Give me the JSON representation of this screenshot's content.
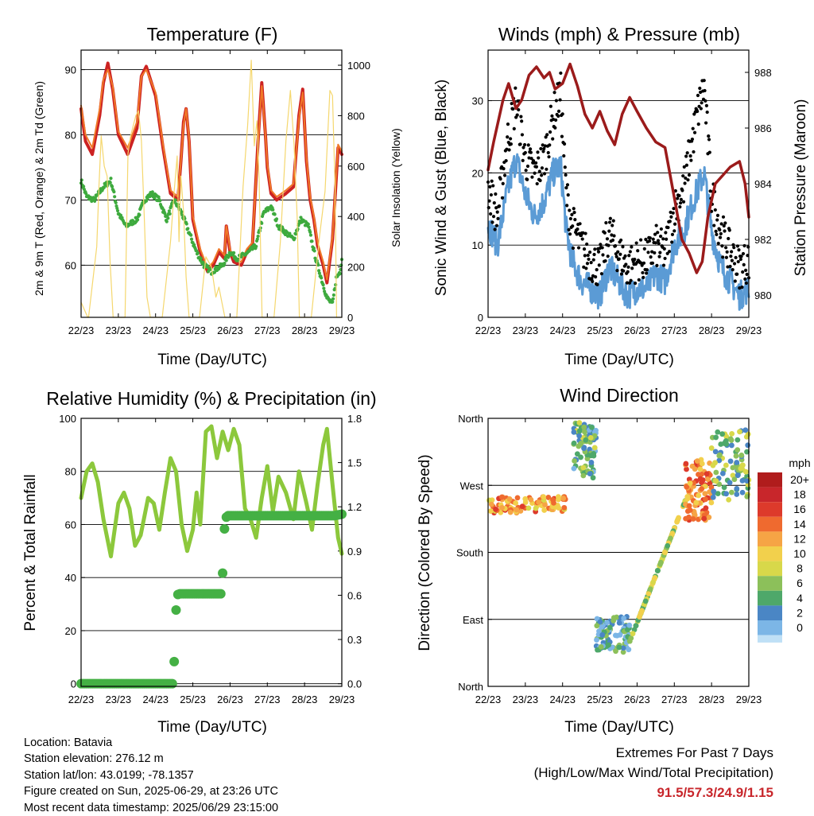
{
  "colors": {
    "temp_2m": "#cc2222",
    "temp_9m": "#f07828",
    "dewpoint": "#3eaa3e",
    "solar": "#f5d76e",
    "wind": "#5b9bd5",
    "gust": "#000000",
    "pressure": "#9b1b1b",
    "rh": "#8cc83c",
    "precip": "#44b044"
  },
  "chart_data": [
    {
      "id": "temperature",
      "type": "line",
      "title": "Temperature (F)",
      "xlabel": "Time (Day/UTC)",
      "ylabel": "2m & 9m T (Red, Orange) & 2m Td (Green)",
      "y2label": "Solar Insolation (Yellow)",
      "x_ticks": [
        "22/23",
        "23/23",
        "24/23",
        "25/23",
        "26/23",
        "27/23",
        "28/23",
        "29/23"
      ],
      "x_range": [
        0,
        7
      ],
      "ylim": [
        52,
        93
      ],
      "y_ticks": [
        60,
        70,
        80,
        90
      ],
      "y2lim": [
        0,
        1060
      ],
      "y2_ticks": [
        0,
        200,
        400,
        600,
        800,
        1000
      ],
      "grid": true,
      "series": [
        {
          "key": "temp_2m",
          "axis": "left",
          "width": 4,
          "x": [
            0,
            0.12,
            0.3,
            0.5,
            0.6,
            0.72,
            0.85,
            1.0,
            1.25,
            1.5,
            1.62,
            1.75,
            2.0,
            2.2,
            2.4,
            2.6,
            2.68,
            2.75,
            2.82,
            2.9,
            3.0,
            3.2,
            3.4,
            3.55,
            3.7,
            3.85,
            3.9,
            4.0,
            4.1,
            4.3,
            4.45,
            4.6,
            4.75,
            4.85,
            4.95,
            5.0,
            5.1,
            5.25,
            5.5,
            5.7,
            5.85,
            5.95,
            6.05,
            6.15,
            6.25,
            6.35,
            6.5,
            6.6,
            6.75,
            6.9,
            7.0
          ],
          "y": [
            84,
            79,
            77,
            83,
            88,
            91,
            87,
            80,
            77,
            81,
            89,
            90.5,
            86,
            78,
            71,
            70,
            76,
            82,
            84,
            79,
            67,
            62,
            59,
            60,
            62,
            61,
            66,
            62,
            60.5,
            60,
            62,
            63,
            79,
            88,
            80,
            75,
            71,
            70,
            71,
            72,
            83,
            87,
            76,
            70,
            67,
            63,
            60,
            57.3,
            64,
            78,
            77
          ]
        },
        {
          "key": "temp_9m",
          "axis": "left",
          "width": 2,
          "x": [
            0,
            0.12,
            0.3,
            0.5,
            0.6,
            0.72,
            0.85,
            1.0,
            1.25,
            1.5,
            1.62,
            1.75,
            2.0,
            2.2,
            2.4,
            2.6,
            2.68,
            2.75,
            2.82,
            2.9,
            3.0,
            3.2,
            3.4,
            3.55,
            3.7,
            3.85,
            3.9,
            4.0,
            4.1,
            4.3,
            4.45,
            4.6,
            4.75,
            4.85,
            4.95,
            5.0,
            5.1,
            5.25,
            5.5,
            5.7,
            5.85,
            5.95,
            6.05,
            6.15,
            6.25,
            6.35,
            6.5,
            6.6,
            6.75,
            6.9,
            7.0
          ],
          "y": [
            84.5,
            80,
            78,
            84,
            88.5,
            90,
            87.5,
            80.5,
            78,
            82,
            89,
            90,
            86.5,
            78.5,
            71.5,
            70.5,
            76,
            81.5,
            84,
            79.5,
            67.5,
            62.5,
            59.5,
            60.5,
            62.5,
            61.5,
            66,
            62.5,
            61,
            60.5,
            62.5,
            63.5,
            78.5,
            87.5,
            80,
            75.5,
            71.5,
            70.5,
            71.5,
            72.5,
            82.5,
            86.5,
            76.5,
            70.5,
            67.5,
            63.5,
            60.5,
            57.8,
            64.5,
            78.5,
            77.5
          ]
        },
        {
          "key": "dewpoint",
          "axis": "left",
          "width": 3,
          "dotted": true,
          "x": [
            0,
            0.15,
            0.35,
            0.6,
            0.8,
            1.0,
            1.2,
            1.5,
            1.7,
            1.9,
            2.1,
            2.3,
            2.5,
            2.7,
            2.9,
            3.1,
            3.3,
            3.5,
            3.8,
            4.0,
            4.2,
            4.5,
            4.7,
            4.9,
            5.1,
            5.3,
            5.5,
            5.7,
            5.9,
            6.1,
            6.3,
            6.5,
            6.6,
            6.75,
            6.85,
            6.95,
            7.0
          ],
          "y": [
            73,
            70.5,
            70,
            72,
            73,
            68,
            66,
            67,
            70,
            71,
            70,
            67,
            70,
            68,
            65,
            62,
            60,
            59,
            60,
            62,
            61,
            62,
            63,
            68,
            69,
            66,
            65,
            64,
            67,
            66,
            61,
            57,
            55,
            54,
            58,
            59,
            61
          ]
        },
        {
          "key": "solar",
          "axis": "right",
          "width": 1.2,
          "x": [
            0,
            0.18,
            0.2,
            0.42,
            0.48,
            0.54,
            0.62,
            0.7,
            0.78,
            0.86,
            1.16,
            1.18,
            1.26,
            1.33,
            1.4,
            1.47,
            1.54,
            1.62,
            1.7,
            1.77,
            1.86,
            2.16,
            2.18,
            2.4,
            2.5,
            2.58,
            2.63,
            2.68,
            2.75,
            2.82,
            2.9,
            3.16,
            3.18,
            3.35,
            3.5,
            3.62,
            3.7,
            3.78,
            3.86,
            4.16,
            4.18,
            4.35,
            4.47,
            4.57,
            4.65,
            4.72,
            4.78,
            4.86,
            5.16,
            5.18,
            5.35,
            5.5,
            5.62,
            5.72,
            5.8,
            5.86,
            6.16,
            6.18,
            6.4,
            6.55,
            6.68,
            6.75,
            6.82,
            6.86,
            7.0
          ],
          "y": [
            60,
            0,
            0,
            280,
            520,
            720,
            600,
            560,
            220,
            0,
            0,
            0,
            650,
            720,
            760,
            800,
            820,
            700,
            380,
            80,
            0,
            0,
            0,
            300,
            500,
            640,
            300,
            560,
            420,
            160,
            0,
            0,
            0,
            240,
            200,
            80,
            120,
            60,
            0,
            0,
            0,
            520,
            760,
            1020,
            680,
            780,
            540,
            0,
            0,
            0,
            300,
            700,
            900,
            680,
            400,
            0,
            0,
            0,
            320,
            500,
            900,
            880,
            500,
            0,
            0
          ]
        }
      ]
    },
    {
      "id": "winds",
      "type": "scatter",
      "title": "Winds (mph) & Pressure (mb)",
      "xlabel": "Time (Day/UTC)",
      "ylabel": "Sonic Wind & Gust (Blue, Black)",
      "y2label": "Station Pressure (Maroon)",
      "x_ticks": [
        "22/23",
        "23/23",
        "24/23",
        "25/23",
        "26/23",
        "27/23",
        "28/23",
        "29/23"
      ],
      "x_range": [
        0,
        7
      ],
      "ylim": [
        0,
        37
      ],
      "y_ticks": [
        0,
        10,
        20,
        30
      ],
      "y2lim": [
        979.2,
        988.8
      ],
      "y2_ticks": [
        980,
        982,
        984,
        986,
        988
      ],
      "grid": true,
      "series": [
        {
          "key": "wind",
          "axis": "left",
          "width": 3,
          "x": [
            0,
            0.25,
            0.5,
            0.75,
            1.0,
            1.25,
            1.5,
            1.75,
            1.95,
            2.1,
            2.25,
            2.5,
            2.75,
            3.0,
            3.25,
            3.5,
            3.75,
            4.0,
            4.25,
            4.5,
            4.75,
            5.0,
            5.25,
            5.5,
            5.65,
            5.8,
            6.0,
            6.25,
            6.5,
            6.75,
            7.0
          ],
          "y": [
            13,
            10,
            17,
            22,
            17,
            14,
            16,
            20,
            21,
            12,
            8,
            5,
            4,
            3,
            7,
            5,
            3,
            4,
            4,
            6,
            5,
            10,
            12,
            16,
            18,
            20,
            12,
            7,
            5,
            3,
            4
          ]
        },
        {
          "key": "gust",
          "axis": "left",
          "width": 3,
          "dotted": true,
          "x": [
            0,
            0.25,
            0.5,
            0.75,
            1.0,
            1.25,
            1.5,
            1.75,
            1.95,
            2.1,
            2.25,
            2.5,
            2.75,
            3.0,
            3.25,
            3.5,
            3.75,
            4.0,
            4.25,
            4.5,
            4.75,
            5.0,
            5.25,
            5.5,
            5.65,
            5.8,
            6.0,
            6.25,
            6.5,
            6.75,
            7.0
          ],
          "y": [
            17,
            13,
            23,
            29,
            21,
            19,
            21,
            27,
            30,
            16,
            12,
            9,
            7,
            6,
            11,
            8,
            6,
            7,
            7,
            9,
            8,
            14,
            17,
            24,
            28,
            31,
            16,
            11,
            8,
            6,
            7
          ]
        },
        {
          "key": "pressure",
          "axis": "right",
          "width": 3.5,
          "x": [
            0,
            0.15,
            0.4,
            0.55,
            0.75,
            0.9,
            1.1,
            1.3,
            1.5,
            1.65,
            1.8,
            2.0,
            2.2,
            2.4,
            2.6,
            2.8,
            3.0,
            3.2,
            3.4,
            3.6,
            3.8,
            4.0,
            4.25,
            4.5,
            4.75,
            5.0,
            5.2,
            5.4,
            5.6,
            5.75,
            5.9,
            6.1,
            6.3,
            6.5,
            6.75,
            6.9,
            7.0
          ],
          "y": [
            984.5,
            985.5,
            987.0,
            987.6,
            986.7,
            987.0,
            987.9,
            988.2,
            987.8,
            988.0,
            987.4,
            987.6,
            988.3,
            987.5,
            986.5,
            986.0,
            986.6,
            985.9,
            985.4,
            986.5,
            987.1,
            986.6,
            986.0,
            985.5,
            985.3,
            983.5,
            982.0,
            981.5,
            980.8,
            981.2,
            982.8,
            984.0,
            984.3,
            984.6,
            984.8,
            984.0,
            982.8
          ]
        }
      ]
    },
    {
      "id": "humidity",
      "type": "line",
      "title": "Relative Humidity (%) & Precipitation (in)",
      "xlabel": "Time (Day/UTC)",
      "ylabel": "Percent & Total Rainfall",
      "x_ticks": [
        "22/23",
        "23/23",
        "24/23",
        "25/23",
        "26/23",
        "27/23",
        "28/23",
        "29/23"
      ],
      "x_range": [
        0,
        7
      ],
      "ylim": [
        -1,
        100
      ],
      "y_ticks": [
        0,
        20,
        40,
        60,
        80,
        100
      ],
      "y2lim": [
        -0.018,
        1.8
      ],
      "y2_ticks": [
        "0.0",
        "0.3",
        "0.6",
        "0.9",
        "1.2",
        "1.5",
        "1.8"
      ],
      "grid": true,
      "series": [
        {
          "key": "rh",
          "axis": "left",
          "width": 5,
          "x": [
            0,
            0.15,
            0.3,
            0.45,
            0.6,
            0.8,
            1.0,
            1.15,
            1.3,
            1.45,
            1.6,
            1.8,
            1.95,
            2.1,
            2.25,
            2.4,
            2.55,
            2.7,
            2.85,
            3.0,
            3.1,
            3.2,
            3.35,
            3.5,
            3.65,
            3.8,
            3.95,
            4.1,
            4.25,
            4.4,
            4.55,
            4.7,
            4.85,
            5.0,
            5.15,
            5.3,
            5.5,
            5.7,
            5.85,
            5.95,
            6.05,
            6.2,
            6.35,
            6.5,
            6.6,
            6.75,
            6.9,
            7.0
          ],
          "y": [
            70,
            80,
            83,
            76,
            62,
            48,
            68,
            72,
            66,
            52,
            56,
            70,
            68,
            58,
            72,
            85,
            80,
            60,
            50,
            58,
            72,
            60,
            95,
            97,
            85,
            95,
            88,
            96,
            90,
            66,
            62,
            55,
            70,
            82,
            65,
            78,
            72,
            62,
            80,
            74,
            68,
            58,
            75,
            90,
            96,
            75,
            55,
            49
          ]
        },
        {
          "key": "precip",
          "axis": "right",
          "width": 12,
          "dotted": true,
          "x": [
            0,
            2.3,
            2.45,
            2.48,
            2.5,
            2.52,
            2.55,
            2.58,
            2.62,
            2.7,
            3.6,
            3.75,
            3.8,
            3.82,
            3.85,
            3.88,
            3.92,
            4.0,
            5.6,
            5.8,
            6.0,
            6.2,
            6.4,
            6.6,
            6.8,
            7.0
          ],
          "y": [
            0,
            0,
            0,
            0.05,
            0.15,
            0.3,
            0.5,
            0.6,
            0.61,
            0.61,
            0.61,
            0.61,
            0.75,
            0.9,
            1.05,
            1.12,
            1.14,
            1.14,
            1.14,
            1.14,
            1.14,
            1.14,
            1.14,
            1.14,
            1.14,
            1.15
          ]
        }
      ]
    },
    {
      "id": "direction",
      "type": "scatter",
      "title": "Wind Direction",
      "xlabel": "Time (Day/UTC)",
      "ylabel": "Direction (Colored By Speed)",
      "x_ticks": [
        "22/23",
        "23/23",
        "24/23",
        "25/23",
        "26/23",
        "27/23",
        "28/23",
        "29/23"
      ],
      "x_range": [
        0,
        7
      ],
      "ylim": [
        0,
        360
      ],
      "y_ticks": [
        "North",
        "East",
        "South",
        "West",
        "North"
      ],
      "grid": true,
      "colorbar_title": "mph",
      "colorbar_labels": [
        "20+",
        "18",
        "16",
        "14",
        "12",
        "10",
        "8",
        "6",
        "4",
        "2",
        "0"
      ],
      "colorbar_colors": [
        "#b01c1c",
        "#c8262b",
        "#dd3a2b",
        "#ef6a2f",
        "#f6a445",
        "#f2d04c",
        "#d8d84a",
        "#8cc05a",
        "#4ea86a",
        "#4a86c5",
        "#7cb6e6",
        "#bfe0f6"
      ],
      "clusters": [
        {
          "x": [
            0.0,
            2.1
          ],
          "dir": [
            233,
            255
          ],
          "speed": 14
        },
        {
          "x": [
            2.3,
            2.9
          ],
          "dir": [
            280,
            355
          ],
          "speed": 6
        },
        {
          "x": [
            2.9,
            3.8
          ],
          "dir": [
            45,
            95
          ],
          "speed": 5
        },
        {
          "x": [
            3.8,
            5.3
          ],
          "dir": [
            60,
            250
          ],
          "speed": 9
        },
        {
          "x": [
            5.3,
            6.0
          ],
          "dir": [
            220,
            305
          ],
          "speed": 15
        },
        {
          "x": [
            6.0,
            7.0
          ],
          "dir": [
            250,
            345
          ],
          "speed": 7
        }
      ]
    }
  ],
  "info": {
    "location": "Location: Batavia",
    "elevation": "Station elevation: 276.12 m",
    "latlon": "Station lat/lon: 43.0199; -78.1357",
    "created": "Figure created on Sun, 2025-06-29, at 23:26 UTC",
    "timestamp": "Most recent data timestamp: 2025/06/29 23:15:00"
  },
  "extremes": {
    "title": "Extremes For Past 7 Days",
    "subtitle": "(High/Low/Max Wind/Total Precipitation)",
    "values": "91.5/57.3/24.9/1.15"
  }
}
